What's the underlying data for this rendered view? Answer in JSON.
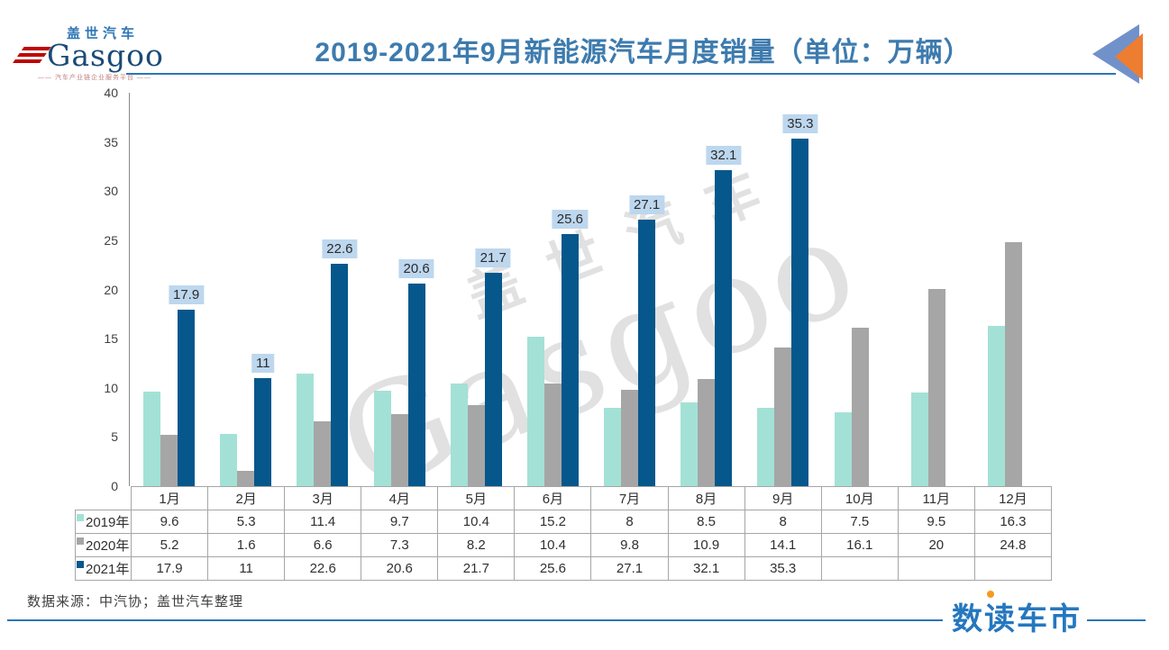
{
  "header": {
    "logo": {
      "cn": "盖世汽车",
      "en": "Gasgoo",
      "tagline": "—— 汽车产业链企业服务平台 ——"
    },
    "accent_color": "#2E75B6",
    "back_icon": "double-left-arrows"
  },
  "chart_data": {
    "type": "bar",
    "title": "2019-2021年9月新能源汽车月度销量（单位：万辆）",
    "categories": [
      "1月",
      "2月",
      "3月",
      "4月",
      "5月",
      "6月",
      "7月",
      "8月",
      "9月",
      "10月",
      "11月",
      "12月"
    ],
    "series": [
      {
        "name": "2019年",
        "color": "#A3E1D6",
        "values": [
          9.6,
          5.3,
          11.4,
          9.7,
          10.4,
          15.2,
          8,
          8.5,
          8,
          7.5,
          9.5,
          16.3
        ]
      },
      {
        "name": "2020年",
        "color": "#A6A6A6",
        "values": [
          5.2,
          1.6,
          6.6,
          7.3,
          8.2,
          10.4,
          9.8,
          10.9,
          14.1,
          16.1,
          20,
          24.8
        ]
      },
      {
        "name": "2021年",
        "color": "#05578C",
        "values": [
          17.9,
          11,
          22.6,
          20.6,
          21.7,
          25.6,
          27.1,
          32.1,
          35.3,
          null,
          null,
          null
        ],
        "data_labels": true,
        "label_bg": "#BDD7EE"
      }
    ],
    "ylim": [
      0,
      40
    ],
    "ytick_step": 5,
    "grid": false,
    "data_table": true,
    "legend_position": "data-table-rows"
  },
  "watermark": {
    "cn": "盖世汽车",
    "en": "Gasgoo"
  },
  "footer": {
    "source": "数据来源：中汽协；盖世汽车整理",
    "brand": "数读车市"
  }
}
